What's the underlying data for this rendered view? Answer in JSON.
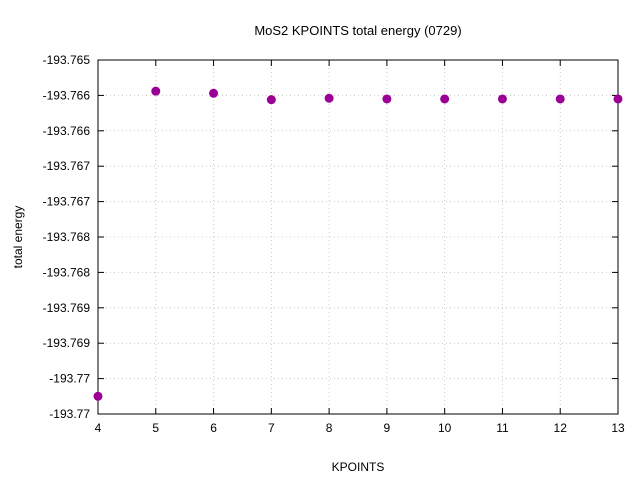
{
  "chart_data": {
    "type": "scatter",
    "title": "MoS2 KPOINTS total energy (0729)",
    "xlabel": "KPOINTS",
    "ylabel": "total energy",
    "xlim": [
      4,
      13
    ],
    "ylim": [
      -193.77,
      -193.765
    ],
    "x_ticks": [
      4,
      5,
      6,
      7,
      8,
      9,
      10,
      11,
      12,
      13
    ],
    "y_ticks": [
      -193.765,
      -193.7655,
      -193.766,
      -193.7665,
      -193.767,
      -193.7675,
      -193.768,
      -193.7685,
      -193.769,
      -193.7695,
      -193.77
    ],
    "y_tick_labels": [
      "-193.765",
      "-193.766",
      "-193.766",
      "-193.767",
      "-193.767",
      "-193.768",
      "-193.768",
      "-193.769",
      "-193.769",
      "-193.77",
      "-193.77"
    ],
    "grid": true,
    "series": [
      {
        "color": "#9b0096",
        "x": [
          4,
          5,
          6,
          7,
          8,
          9,
          10,
          11,
          12,
          13
        ],
        "y": [
          -193.76975,
          -193.76544,
          -193.76547,
          -193.76556,
          -193.76554,
          -193.76555,
          -193.76555,
          -193.76555,
          -193.76555,
          -193.76555
        ]
      }
    ]
  }
}
